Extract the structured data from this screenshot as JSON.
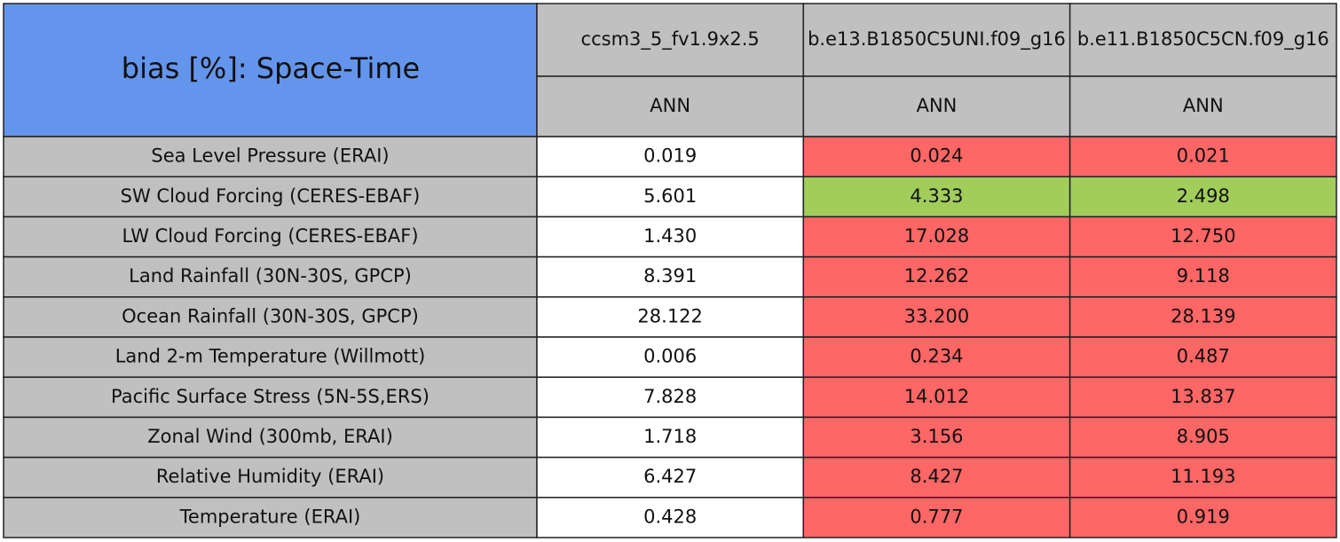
{
  "title": "bias [%]: Space-Time",
  "columns": [
    {
      "model": "ccsm3_5_fv1.9x2.5",
      "season": "ANN"
    },
    {
      "model": "b.e13.B1850C5UNI.f09_g16",
      "season": "ANN"
    },
    {
      "model": "b.e11.B1850C5CN.f09_g16",
      "season": "ANN"
    }
  ],
  "rows": [
    {
      "label": "Sea Level Pressure (ERAI)",
      "cells": [
        {
          "text": "0.019",
          "color": "#ffffff"
        },
        {
          "text": "0.024",
          "color": "#ff6666"
        },
        {
          "text": "0.021",
          "color": "#ff6666"
        }
      ]
    },
    {
      "label": "SW Cloud Forcing (CERES-EBAF)",
      "cells": [
        {
          "text": "5.601",
          "color": "#ffffff"
        },
        {
          "text": "4.333",
          "color": "#a1cd5b"
        },
        {
          "text": "2.498",
          "color": "#a1cd5b"
        }
      ]
    },
    {
      "label": "LW Cloud Forcing (CERES-EBAF)",
      "cells": [
        {
          "text": "1.430",
          "color": "#ffffff"
        },
        {
          "text": "17.028",
          "color": "#ff6666"
        },
        {
          "text": "12.750",
          "color": "#ff6666"
        }
      ]
    },
    {
      "label": "Land Rainfall (30N-30S, GPCP)",
      "cells": [
        {
          "text": "8.391",
          "color": "#ffffff"
        },
        {
          "text": "12.262",
          "color": "#ff6666"
        },
        {
          "text": "9.118",
          "color": "#ff6666"
        }
      ]
    },
    {
      "label": "Ocean Rainfall (30N-30S, GPCP)",
      "cells": [
        {
          "text": "28.122",
          "color": "#ffffff"
        },
        {
          "text": "33.200",
          "color": "#ff6666"
        },
        {
          "text": "28.139",
          "color": "#ff6666"
        }
      ]
    },
    {
      "label": "Land 2-m Temperature (Willmott)",
      "cells": [
        {
          "text": "0.006",
          "color": "#ffffff"
        },
        {
          "text": "0.234",
          "color": "#ff6666"
        },
        {
          "text": "0.487",
          "color": "#ff6666"
        }
      ]
    },
    {
      "label": "Pacific Surface Stress (5N-5S,ERS)",
      "cells": [
        {
          "text": "7.828",
          "color": "#ffffff"
        },
        {
          "text": "14.012",
          "color": "#ff6666"
        },
        {
          "text": "13.837",
          "color": "#ff6666"
        }
      ]
    },
    {
      "label": "Zonal Wind (300mb, ERAI)",
      "cells": [
        {
          "text": "1.718",
          "color": "#ffffff"
        },
        {
          "text": "3.156",
          "color": "#ff6666"
        },
        {
          "text": "8.905",
          "color": "#ff6666"
        }
      ]
    },
    {
      "label": "Relative Humidity (ERAI)",
      "cells": [
        {
          "text": "6.427",
          "color": "#ffffff"
        },
        {
          "text": "8.427",
          "color": "#ff6666"
        },
        {
          "text": "11.193",
          "color": "#ff6666"
        }
      ]
    },
    {
      "label": "Temperature (ERAI)",
      "cells": [
        {
          "text": "0.428",
          "color": "#ffffff"
        },
        {
          "text": "0.777",
          "color": "#ff6666"
        },
        {
          "text": "0.919",
          "color": "#ff6666"
        }
      ]
    }
  ]
}
